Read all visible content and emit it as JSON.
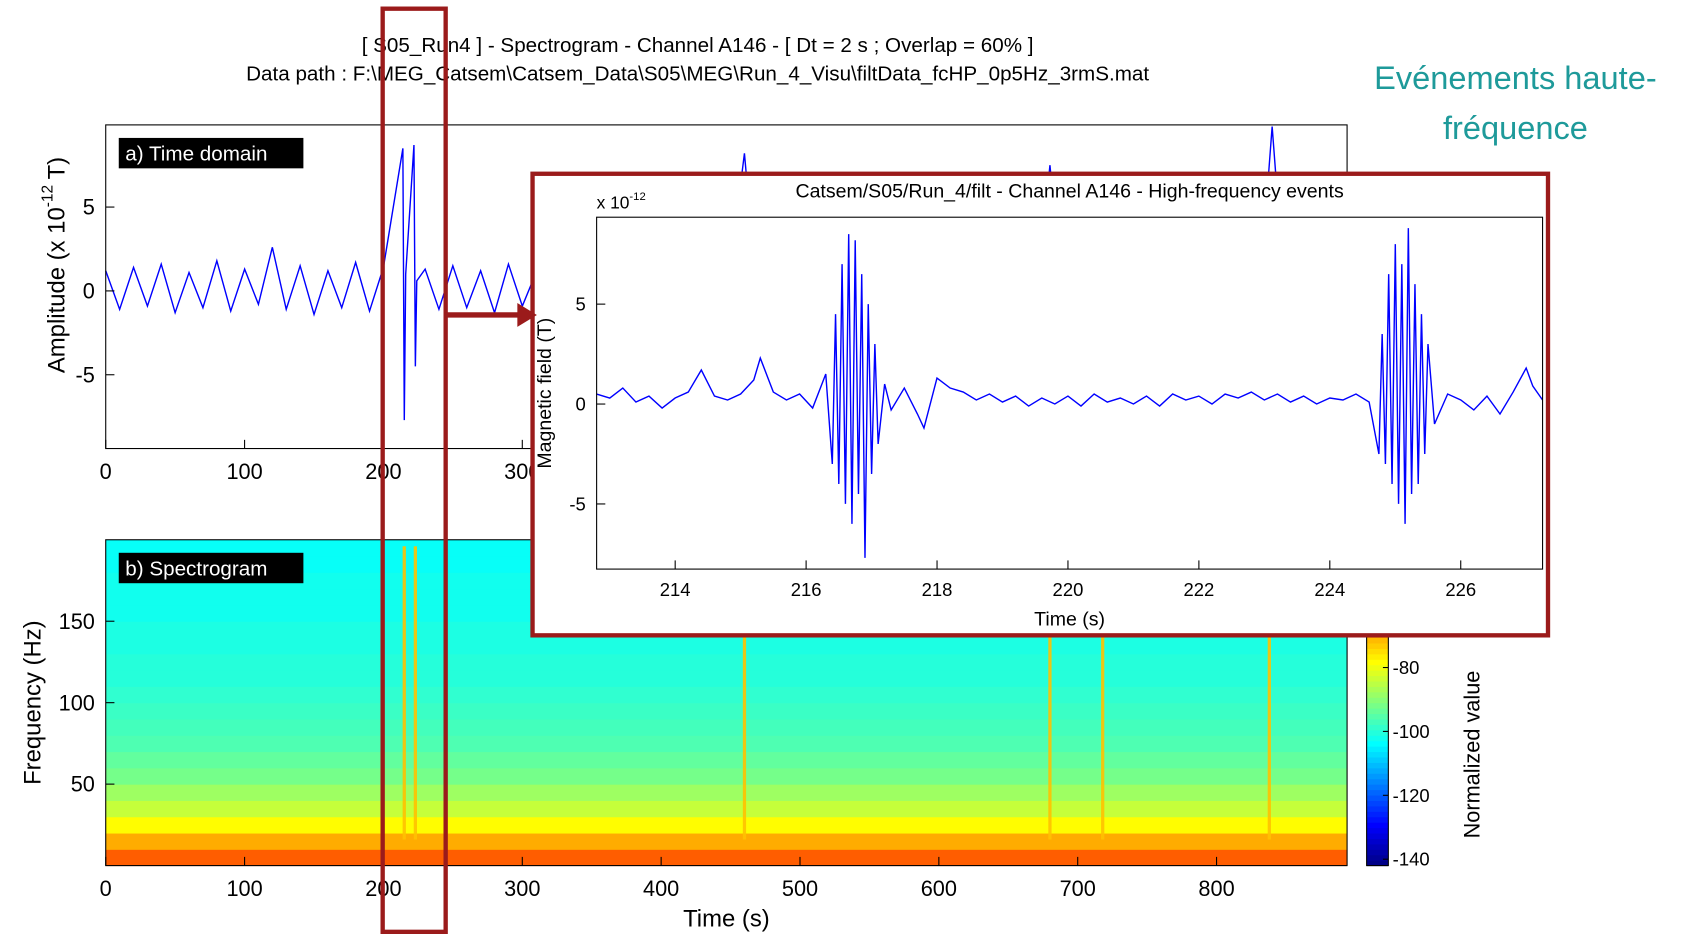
{
  "header": {
    "title": "[ S05_Run4 ] - Spectrogram - Channel A146 - [ Dt = 2 s ; Overlap = 60% ]",
    "subtitle": "Data path : F:\\MEG_Catsem\\Catsem_Data\\S05\\MEG\\Run_4_Visu\\filtData_fcHP_0p5Hz_3rmS.mat",
    "annotation": [
      "Evénements haute-",
      "fréquence"
    ]
  },
  "chart_data": [
    {
      "type": "line",
      "panel_label": "a) Time domain",
      "color": "#0000ff",
      "ylabel": {
        "text": "Amplitude (x 10",
        "exponent": "-12",
        "unit": "T)"
      },
      "x": [
        0,
        10,
        20,
        30,
        40,
        50,
        60,
        70,
        80,
        90,
        100,
        110,
        120,
        130,
        140,
        150,
        160,
        170,
        180,
        190,
        200,
        214,
        215,
        216,
        222,
        223,
        224,
        230,
        240,
        250,
        260,
        270,
        280,
        290,
        300,
        310,
        320,
        330,
        340,
        350,
        360,
        370,
        380,
        390,
        400,
        410,
        420,
        430,
        440,
        450,
        460,
        470,
        480,
        490,
        500,
        510,
        520,
        530,
        540,
        550,
        560,
        570,
        580,
        590,
        600,
        610,
        620,
        630,
        640,
        650,
        660,
        670,
        680,
        690,
        700,
        710,
        720,
        730,
        740,
        750,
        760,
        770,
        780,
        790,
        800,
        810,
        820,
        830,
        840,
        850,
        860,
        870,
        880,
        890
      ],
      "values": [
        1.2,
        -1.1,
        1.4,
        -0.9,
        1.6,
        -1.3,
        1.1,
        -1.0,
        1.8,
        -1.2,
        1.3,
        -0.8,
        2.6,
        -1.1,
        1.5,
        -1.4,
        1.2,
        -1.0,
        1.7,
        -1.2,
        1.4,
        8.5,
        -7.7,
        1.0,
        8.7,
        -4.5,
        0.6,
        1.3,
        -1.1,
        1.5,
        -1.0,
        1.2,
        -1.3,
        1.6,
        -0.9,
        1.1,
        -1.2,
        1.4,
        -1.0,
        1.3,
        -1.1,
        1.5,
        -1.2,
        1.2,
        -1.0,
        1.4,
        -1.3,
        1.3,
        -1.1,
        1.5,
        8.2,
        -1.2,
        1.3,
        -1.0,
        1.4,
        -1.1,
        1.2,
        -1.3,
        1.5,
        -0.9,
        1.3,
        -1.1,
        1.4,
        -1.2,
        1.2,
        -1.0,
        1.6,
        -1.1,
        1.3,
        -1.2,
        1.4,
        -1.0,
        7.5,
        -1.3,
        1.2,
        -1.1,
        1.5,
        -1.0,
        1.3,
        -1.2,
        1.4,
        -0.9,
        1.2,
        -1.1,
        1.3,
        -1.0,
        1.4,
        -1.2,
        9.8,
        -1.1,
        1.3,
        -1.0,
        1.2,
        -1.1
      ],
      "xlim": [
        0,
        894
      ],
      "xticks": [
        0,
        100,
        200,
        300,
        400,
        500,
        600,
        700,
        800
      ],
      "ylim": [
        -9.4,
        9.9
      ],
      "yticks": [
        -5,
        0,
        5
      ]
    },
    {
      "type": "heatmap",
      "panel_label": "b) Spectrogram",
      "xlabel": "Time (s)",
      "ylabel": "Frequency (Hz)",
      "y_bins": [
        0,
        10,
        20,
        30,
        40,
        50,
        60,
        70,
        80,
        90,
        100,
        110,
        120,
        130,
        140,
        150,
        160,
        170,
        180,
        190,
        200
      ],
      "values": [
        -62,
        -70,
        -78,
        -84,
        -88,
        -92,
        -94,
        -96,
        -97,
        -98,
        -99,
        -100,
        -100,
        -101,
        -101,
        -102,
        -102,
        -102,
        -103,
        -103
      ],
      "event_times": [
        215,
        223,
        460,
        680,
        718,
        838
      ],
      "event_value": -72,
      "xlim": [
        0,
        894
      ],
      "xticks": [
        0,
        100,
        200,
        300,
        400,
        500,
        600,
        700,
        800
      ],
      "ylim": [
        0,
        200
      ],
      "yticks": [
        50,
        100,
        150
      ],
      "colormap": "jet",
      "clim": [
        -142,
        -40
      ],
      "cticks": [
        -140,
        -120,
        -100,
        -80
      ],
      "clabel": "Normalized value"
    },
    {
      "type": "line",
      "title": "Catsem/S05/Run_4/filt -  Channel A146 - High-frequency events",
      "color": "#0000ff",
      "xlabel": "Time (s)",
      "ylabel": "Magnetic field (T)",
      "scale_label": {
        "text": "x 10",
        "exponent": "-12"
      },
      "x": [
        212.8,
        213.0,
        213.2,
        213.4,
        213.6,
        213.8,
        214.0,
        214.2,
        214.4,
        214.6,
        214.8,
        215.0,
        215.2,
        215.3,
        215.5,
        215.7,
        215.9,
        216.1,
        216.3,
        216.4,
        216.45,
        216.5,
        216.55,
        216.6,
        216.65,
        216.7,
        216.75,
        216.8,
        216.85,
        216.9,
        216.95,
        217.0,
        217.05,
        217.1,
        217.2,
        217.3,
        217.5,
        217.7,
        217.8,
        218.0,
        218.2,
        218.4,
        218.6,
        218.8,
        219.0,
        219.2,
        219.4,
        219.6,
        219.8,
        220.0,
        220.2,
        220.4,
        220.6,
        220.8,
        221.0,
        221.2,
        221.4,
        221.6,
        221.8,
        222.0,
        222.2,
        222.4,
        222.6,
        222.8,
        223.0,
        223.2,
        223.4,
        223.6,
        223.8,
        224.0,
        224.2,
        224.4,
        224.6,
        224.75,
        224.8,
        224.85,
        224.9,
        224.95,
        225.0,
        225.05,
        225.1,
        225.15,
        225.2,
        225.25,
        225.3,
        225.35,
        225.4,
        225.45,
        225.5,
        225.6,
        225.8,
        226.0,
        226.2,
        226.4,
        226.6,
        226.8,
        227.0,
        227.1,
        227.25
      ],
      "values": [
        0.5,
        0.3,
        0.8,
        0.1,
        0.4,
        -0.2,
        0.3,
        0.6,
        1.7,
        0.4,
        0.2,
        0.5,
        1.2,
        2.3,
        0.6,
        0.2,
        0.5,
        -0.2,
        1.5,
        -3.0,
        4.5,
        -4.0,
        7.0,
        -5.0,
        8.5,
        -6.0,
        8.2,
        -4.5,
        6.5,
        -7.7,
        5.0,
        -3.5,
        3.0,
        -2.0,
        1.0,
        -0.3,
        0.8,
        -0.5,
        -1.2,
        1.3,
        0.8,
        0.6,
        0.2,
        0.5,
        0.1,
        0.4,
        -0.1,
        0.3,
        0.0,
        0.4,
        -0.1,
        0.5,
        0.1,
        0.3,
        0.0,
        0.4,
        -0.1,
        0.5,
        0.2,
        0.4,
        0.0,
        0.5,
        0.3,
        0.6,
        0.2,
        0.5,
        0.1,
        0.4,
        0.0,
        0.3,
        0.2,
        0.5,
        0.1,
        -2.5,
        3.5,
        -3.0,
        6.5,
        -4.0,
        8.0,
        -5.0,
        7.0,
        -6.0,
        8.8,
        -4.5,
        6.0,
        -4.0,
        4.5,
        -2.5,
        3.0,
        -1.0,
        0.5,
        0.2,
        -0.3,
        0.4,
        -0.5,
        0.6,
        1.8,
        0.9,
        0.2
      ],
      "xlim": [
        212.8,
        227.25
      ],
      "xticks": [
        214,
        216,
        218,
        220,
        222,
        224,
        226
      ],
      "ylim": [
        -8.26,
        9.35
      ],
      "yticks": [
        -5,
        0,
        5
      ]
    }
  ]
}
